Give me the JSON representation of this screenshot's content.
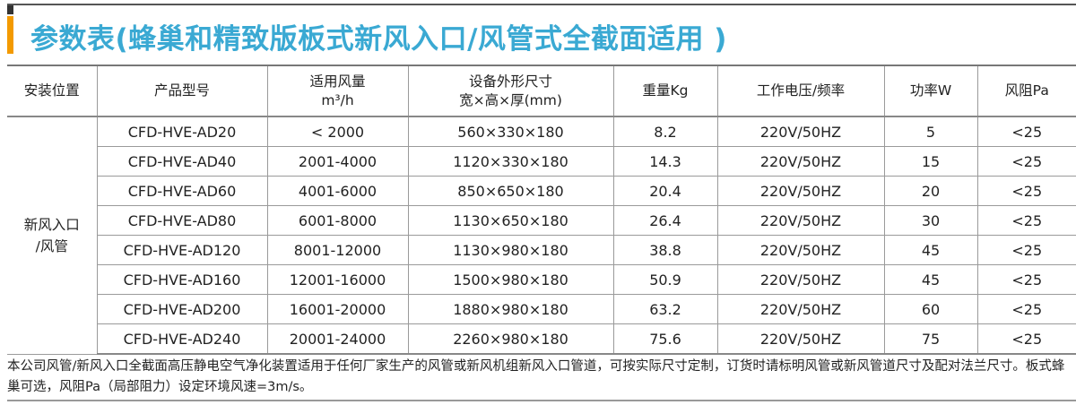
{
  "title": "参数表(蜂巢和精致版板式新风入口/风管式全截面适用 )",
  "accent_colors": {
    "title": "#3aa9d3",
    "bar": "#f39a00"
  },
  "table": {
    "headers": [
      "安装位置",
      "产品型号",
      "适用风量",
      "m³/h",
      "设备外形尺寸",
      "宽×高×厚(mm)",
      "重量Kg",
      "工作电压/频率",
      "功率W",
      "风阻Pa"
    ],
    "location": [
      "新风入口",
      "/风管"
    ],
    "rows": [
      [
        "CFD-HVE-AD20",
        "< 2000",
        "560×330×180",
        "8.2",
        "220V/50HZ",
        "5",
        "<25"
      ],
      [
        "CFD-HVE-AD40",
        "2001-4000",
        "1120×330×180",
        "14.3",
        "220V/50HZ",
        "15",
        "<25"
      ],
      [
        "CFD-HVE-AD60",
        "4001-6000",
        "850×650×180",
        "20.4",
        "220V/50HZ",
        "20",
        "<25"
      ],
      [
        "CFD-HVE-AD80",
        "6001-8000",
        "1130×650×180",
        "26.4",
        "220V/50HZ",
        "30",
        "<25"
      ],
      [
        "CFD-HVE-AD120",
        "8001-12000",
        "1130×980×180",
        "38.8",
        "220V/50HZ",
        "45",
        "<25"
      ],
      [
        "CFD-HVE-AD160",
        "12001-16000",
        "1500×980×180",
        "50.9",
        "220V/50HZ",
        "45",
        "<25"
      ],
      [
        "CFD-HVE-AD200",
        "16001-20000",
        "1880×980×180",
        "63.2",
        "220V/50HZ",
        "60",
        "<25"
      ],
      [
        "CFD-HVE-AD240",
        "20001-24000",
        "2260×980×180",
        "75.6",
        "220V/50HZ",
        "75",
        "<25"
      ]
    ]
  },
  "note": "本公司风管/新风入口全截面高压静电空气净化装置适用于任何厂家生产的风管或新风机组新风入口管道，可按实际尺寸定制，订货时请标明风管或新风管道尺寸及配对法兰尺寸。板式蜂巢可选，风阻Pa（局部阻力）设定环境风速=3m/s。"
}
